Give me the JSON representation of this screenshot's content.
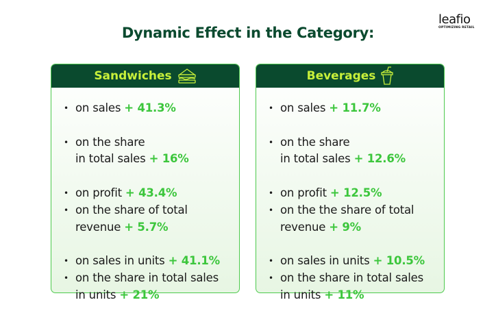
{
  "title": "Dynamic Effect in the Category:",
  "logo": {
    "name": "leafio",
    "tagline": "OPTIMIZING RETAIL"
  },
  "colors": {
    "header_bg": "#0a4a2e",
    "header_text": "#c8f03a",
    "value": "#3cc63c",
    "border": "#4cc94c"
  },
  "cards": [
    {
      "label": "Sandwiches",
      "icon": "sandwich-icon",
      "groups": [
        [
          {
            "text": "on sales",
            "value": "+ 41.3%",
            "bullet": true
          }
        ],
        [
          {
            "text": "on the share",
            "value": "",
            "bullet": true
          },
          {
            "text": "in total sales",
            "value": "+ 16%",
            "bullet": false
          }
        ],
        [
          {
            "text": "on profit",
            "value": "+ 43.4%",
            "bullet": true
          },
          {
            "text": "on the share of total",
            "value": "",
            "bullet": true
          },
          {
            "text": "revenue",
            "value": "+ 5.7%",
            "bullet": false
          }
        ],
        [
          {
            "text": "on sales in units",
            "value": "+ 41.1%",
            "bullet": true
          },
          {
            "text": "on the share in total sales",
            "value": "",
            "bullet": true
          },
          {
            "text": "in units",
            "value": "+ 21%",
            "bullet": false
          }
        ]
      ]
    },
    {
      "label": "Beverages",
      "icon": "drink-cup-icon",
      "groups": [
        [
          {
            "text": "on sales",
            "value": "+ 11.7%",
            "bullet": true
          }
        ],
        [
          {
            "text": "on the share",
            "value": "",
            "bullet": true
          },
          {
            "text": "in total sales",
            "value": "+ 12.6%",
            "bullet": false
          }
        ],
        [
          {
            "text": "on profit",
            "value": "+ 12.5%",
            "bullet": true
          },
          {
            "text": "on the the share of total",
            "value": "",
            "bullet": true
          },
          {
            "text": "revenue",
            "value": "+ 9%",
            "bullet": false
          }
        ],
        [
          {
            "text": "on sales in units",
            "value": "+ 10.5%",
            "bullet": true
          },
          {
            "text": "on the share in total sales",
            "value": "",
            "bullet": true
          },
          {
            "text": "in units",
            "value": "+ 11%",
            "bullet": false
          }
        ]
      ]
    }
  ]
}
